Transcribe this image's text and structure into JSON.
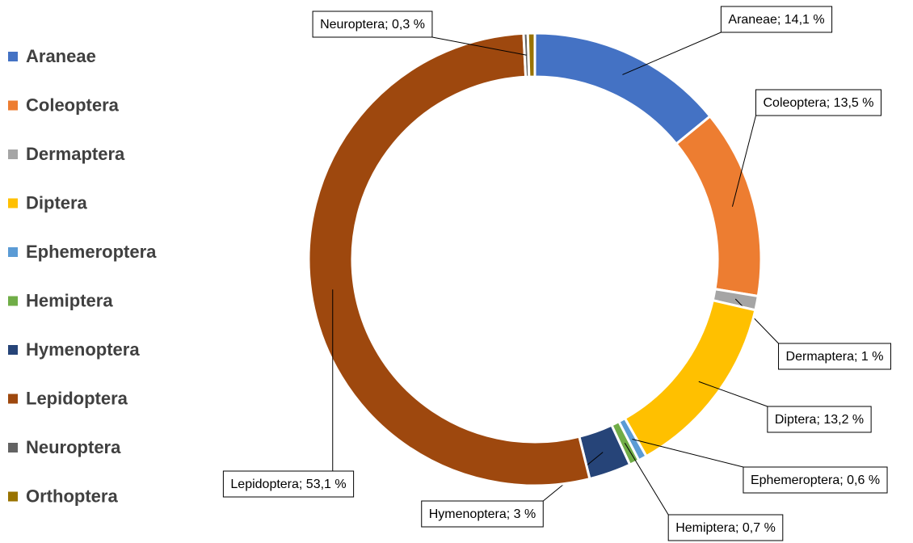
{
  "chart_data": {
    "type": "donut",
    "categories": [
      "Araneae",
      "Coleoptera",
      "Dermaptera",
      "Diptera",
      "Ephemeroptera",
      "Hemiptera",
      "Hymenoptera",
      "Lepidoptera",
      "Neuroptera",
      "Orthoptera"
    ],
    "values": [
      14.1,
      13.5,
      1,
      13.2,
      0.6,
      0.7,
      3,
      53.1,
      0.3,
      0.5
    ],
    "value_labels": [
      "Araneae; 14,1 %",
      "Coleoptera; 13,5 %",
      "Dermaptera; 1 %",
      "Diptera; 13,2 %",
      "Ephemeroptera; 0,6 %",
      "Hemiptera; 0,7 %",
      "Hymenoptera; 3 %",
      "Lepidoptera; 53,1 %",
      "Neuroptera; 0,3 %",
      null
    ],
    "colors": [
      "#4472c4",
      "#ed7d31",
      "#a5a5a5",
      "#ffc000",
      "#5b9bd5",
      "#70ad47",
      "#264478",
      "#9e480e",
      "#636363",
      "#997300"
    ],
    "legend": "left"
  }
}
